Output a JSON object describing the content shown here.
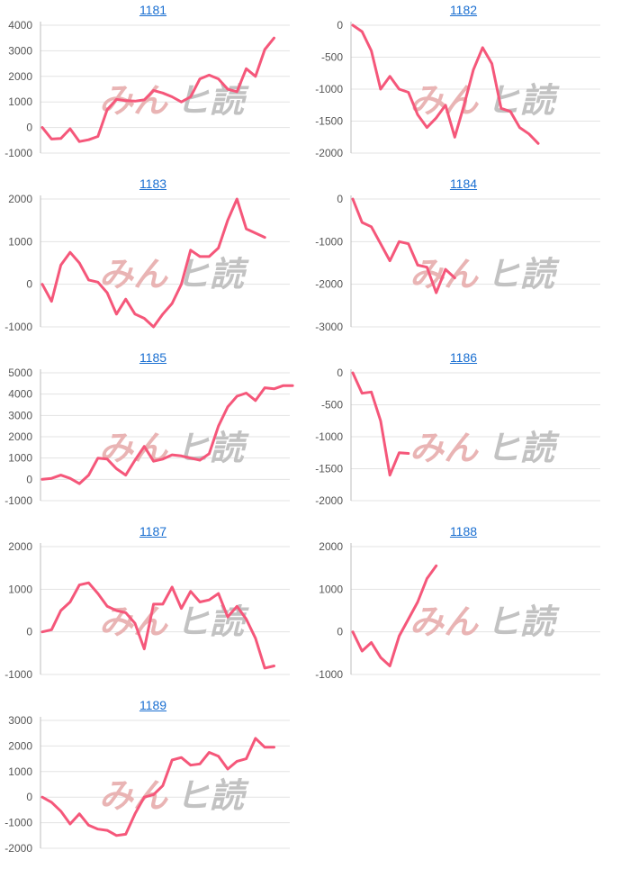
{
  "colors": {
    "line": "#f5577a",
    "link": "#1a6fd1"
  },
  "watermark": {
    "text_pink": "みん",
    "text_gray": "ヒ読",
    "pink": "#e9b4b4",
    "gray": "#c2c2c2"
  },
  "chart_data": [
    {
      "type": "line",
      "title": "1181",
      "ylim": [
        -1000,
        4000
      ],
      "yticks": [
        -1000,
        0,
        1000,
        2000,
        3000,
        4000
      ],
      "series": [
        {
          "values": [
            0,
            -450,
            -430,
            -50,
            -550,
            -480,
            -350,
            700,
            1100,
            1050,
            1030,
            1080,
            1450,
            1350,
            1200,
            1000,
            1200,
            1900,
            2050,
            1900,
            1500,
            1400,
            2300,
            2000,
            3050,
            3500
          ]
        }
      ]
    },
    {
      "type": "line",
      "title": "1182",
      "ylim": [
        -2000,
        0
      ],
      "yticks": [
        -2000,
        -1500,
        -1000,
        -500,
        0
      ],
      "series": [
        {
          "values": [
            0,
            -100,
            -400,
            -1000,
            -800,
            -1000,
            -1050,
            -1400,
            -1600,
            -1450,
            -1250,
            -1750,
            -1250,
            -700,
            -350,
            -600,
            -1300,
            -1350,
            -1600,
            -1700,
            -1850
          ]
        }
      ]
    },
    {
      "type": "line",
      "title": "1183",
      "ylim": [
        -1000,
        2000
      ],
      "yticks": [
        -1000,
        0,
        1000,
        2000
      ],
      "series": [
        {
          "values": [
            0,
            -400,
            450,
            750,
            500,
            100,
            50,
            -200,
            -700,
            -350,
            -700,
            -800,
            -1000,
            -700,
            -450,
            0,
            800,
            650,
            650,
            850,
            1500,
            2000,
            1300,
            1200,
            1100
          ]
        }
      ]
    },
    {
      "type": "line",
      "title": "1184",
      "ylim": [
        -3000,
        0
      ],
      "yticks": [
        -3000,
        -2000,
        -1000,
        0
      ],
      "series": [
        {
          "values": [
            0,
            -550,
            -650,
            -1050,
            -1450,
            -1000,
            -1050,
            -1550,
            -1600,
            -2200,
            -1650,
            -1850
          ]
        }
      ]
    },
    {
      "type": "line",
      "title": "1185",
      "ylim": [
        -1000,
        5000
      ],
      "yticks": [
        -1000,
        0,
        1000,
        2000,
        3000,
        4000,
        5000
      ],
      "series": [
        {
          "values": [
            0,
            50,
            200,
            50,
            -200,
            200,
            1000,
            950,
            500,
            200,
            900,
            1550,
            850,
            950,
            1150,
            1100,
            1000,
            900,
            1200,
            2500,
            3400,
            3900,
            4050,
            3700,
            4300,
            4250,
            4400,
            4400
          ]
        }
      ]
    },
    {
      "type": "line",
      "title": "1186",
      "ylim": [
        -2000,
        0
      ],
      "yticks": [
        -2000,
        -1500,
        -1000,
        -500,
        0
      ],
      "series": [
        {
          "values": [
            0,
            -320,
            -300,
            -750,
            -1600,
            -1250,
            -1260
          ]
        }
      ]
    },
    {
      "type": "line",
      "title": "1187",
      "ylim": [
        -1000,
        2000
      ],
      "yticks": [
        -1000,
        0,
        1000,
        2000
      ],
      "series": [
        {
          "values": [
            0,
            50,
            500,
            700,
            1100,
            1150,
            900,
            600,
            500,
            450,
            200,
            -400,
            650,
            650,
            1050,
            550,
            950,
            700,
            750,
            900,
            350,
            600,
            300,
            -150,
            -850,
            -800
          ]
        }
      ]
    },
    {
      "type": "line",
      "title": "1188",
      "ylim": [
        -1000,
        2000
      ],
      "yticks": [
        -1000,
        0,
        1000,
        2000
      ],
      "series": [
        {
          "values": [
            0,
            -450,
            -250,
            -600,
            -800,
            -100,
            300,
            700,
            1250,
            1550
          ]
        }
      ]
    },
    {
      "type": "line",
      "title": "1189",
      "ylim": [
        -2000,
        3000
      ],
      "yticks": [
        -2000,
        -1000,
        0,
        1000,
        2000,
        3000
      ],
      "series": [
        {
          "values": [
            0,
            -200,
            -550,
            -1050,
            -650,
            -1100,
            -1250,
            -1300,
            -1500,
            -1450,
            -650,
            0,
            100,
            450,
            1450,
            1550,
            1250,
            1300,
            1750,
            1600,
            1100,
            1400,
            1500,
            2300,
            1950,
            1950
          ]
        }
      ]
    }
  ]
}
